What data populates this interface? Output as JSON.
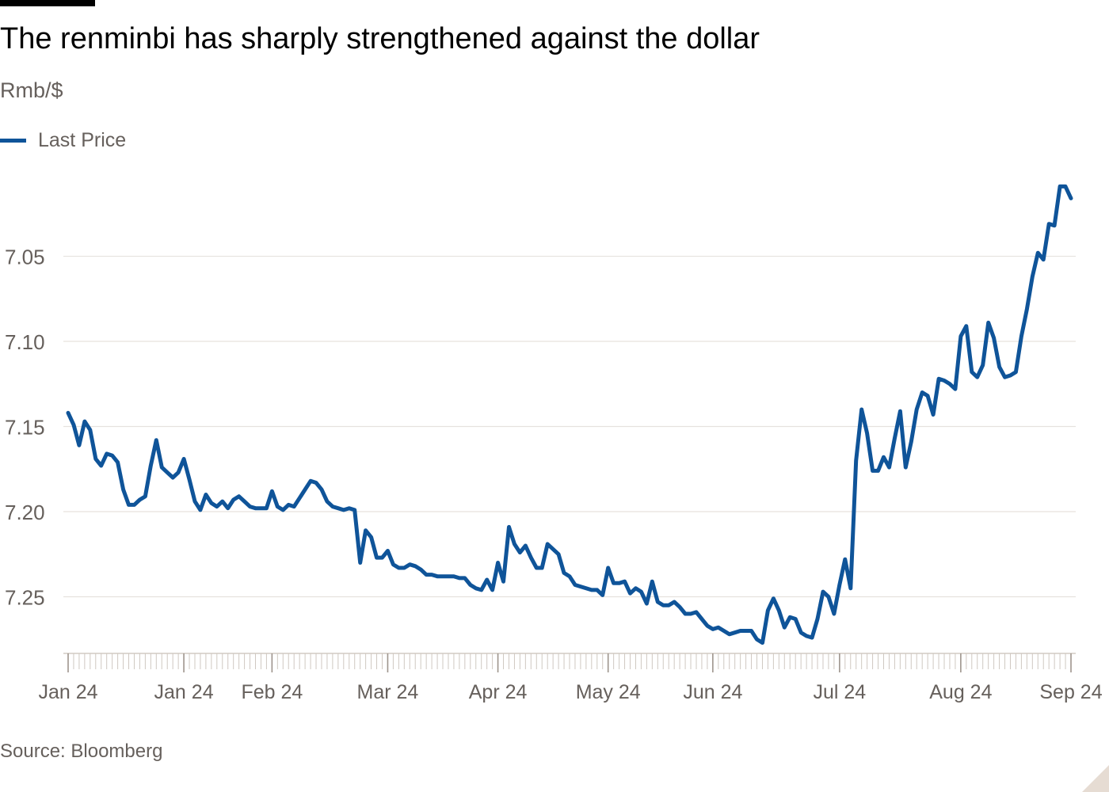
{
  "chart_data": {
    "type": "line",
    "title": "The renminbi has sharply strengthened against the dollar",
    "subtitle": "Rmb/$",
    "source": "Source: Bloomberg",
    "line_color": "#0f5499",
    "yticks": [
      7.05,
      7.1,
      7.15,
      7.2,
      7.25
    ],
    "ytick_labels": [
      "7.05",
      "7.10",
      "7.15",
      "7.20",
      "7.25"
    ],
    "ylim": [
      7.28,
      7.013
    ],
    "y_reversed": true,
    "x_tick_labels": [
      {
        "label": "Jan 24",
        "index": 0
      },
      {
        "label": "Jan 24",
        "index": 21
      },
      {
        "label": "Feb 24",
        "index": 37
      },
      {
        "label": "Mar 24",
        "index": 58
      },
      {
        "label": "Apr 24",
        "index": 78
      },
      {
        "label": "May 24",
        "index": 98
      },
      {
        "label": "Jun 24",
        "index": 117
      },
      {
        "label": "Jul 24",
        "index": 140
      },
      {
        "label": "Aug 24",
        "index": 162
      },
      {
        "label": "Sep 24",
        "index": 182
      }
    ],
    "series": [
      {
        "name": "Last Price",
        "values": [
          7.142,
          7.149,
          7.161,
          7.147,
          7.152,
          7.169,
          7.173,
          7.166,
          7.167,
          7.171,
          7.187,
          7.196,
          7.196,
          7.193,
          7.191,
          7.173,
          7.158,
          7.174,
          7.177,
          7.18,
          7.177,
          7.169,
          7.181,
          7.194,
          7.199,
          7.19,
          7.195,
          7.197,
          7.194,
          7.198,
          7.193,
          7.191,
          7.194,
          7.197,
          7.198,
          7.198,
          7.198,
          7.188,
          7.197,
          7.199,
          7.196,
          7.197,
          7.192,
          7.187,
          7.182,
          7.183,
          7.187,
          7.194,
          7.197,
          7.198,
          7.199,
          7.198,
          7.199,
          7.23,
          7.211,
          7.215,
          7.227,
          7.227,
          7.223,
          7.231,
          7.233,
          7.233,
          7.231,
          7.232,
          7.234,
          7.237,
          7.237,
          7.238,
          7.238,
          7.238,
          7.238,
          7.239,
          7.239,
          7.243,
          7.245,
          7.246,
          7.24,
          7.246,
          7.23,
          7.241,
          7.209,
          7.219,
          7.224,
          7.22,
          7.227,
          7.233,
          7.233,
          7.219,
          7.222,
          7.225,
          7.236,
          7.238,
          7.243,
          7.244,
          7.245,
          7.246,
          7.246,
          7.249,
          7.233,
          7.242,
          7.242,
          7.241,
          7.248,
          7.245,
          7.247,
          7.254,
          7.241,
          7.253,
          7.255,
          7.255,
          7.253,
          7.256,
          7.26,
          7.26,
          7.259,
          7.263,
          7.267,
          7.269,
          7.268,
          7.27,
          7.272,
          7.271,
          7.27,
          7.27,
          7.27,
          7.275,
          7.277,
          7.258,
          7.251,
          7.258,
          7.268,
          7.262,
          7.263,
          7.271,
          7.273,
          7.274,
          7.263,
          7.247,
          7.25,
          7.26,
          7.243,
          7.228,
          7.245,
          7.17,
          7.14,
          7.154,
          7.176,
          7.176,
          7.168,
          7.174,
          7.157,
          7.141,
          7.174,
          7.159,
          7.14,
          7.13,
          7.132,
          7.143,
          7.122,
          7.123,
          7.125,
          7.128,
          7.097,
          7.091,
          7.118,
          7.121,
          7.114,
          7.089,
          7.098,
          7.115,
          7.121,
          7.12,
          7.118,
          7.097,
          7.081,
          7.062,
          7.048,
          7.052,
          7.031,
          7.032,
          7.009,
          7.009,
          7.016
        ]
      }
    ]
  }
}
